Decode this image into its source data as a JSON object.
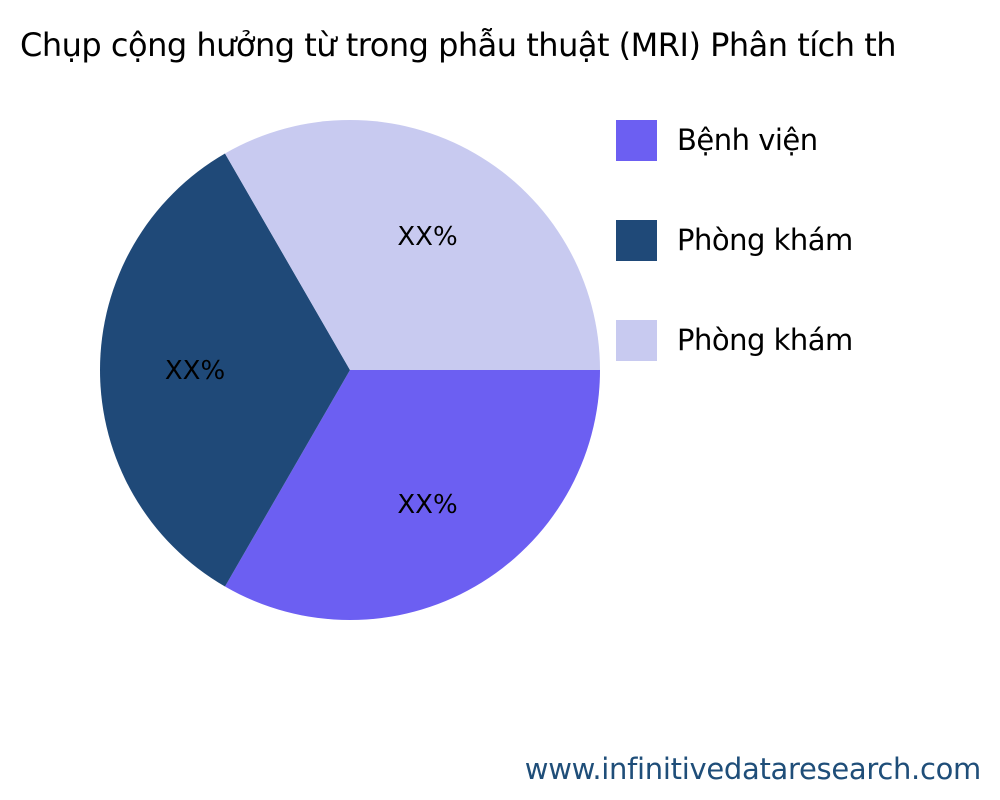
{
  "chart_data": {
    "type": "pie",
    "title": "Chụp cộng hưởng từ trong phẫu thuật (MRI) Phân tích th",
    "categories": [
      "Bệnh viện",
      "Phòng khám",
      "Phòng khám"
    ],
    "values": [
      33.33,
      33.33,
      33.33
    ],
    "data_labels": [
      "XX%",
      "XX%",
      "XX%"
    ],
    "colors": [
      "#6c5ff2",
      "#1f4978",
      "#c8caf0"
    ],
    "legend_position": "right",
    "start_angle": "3 o'clock",
    "direction": "clockwise"
  },
  "footer": {
    "website": "www.infinitivedataresearch.com"
  }
}
